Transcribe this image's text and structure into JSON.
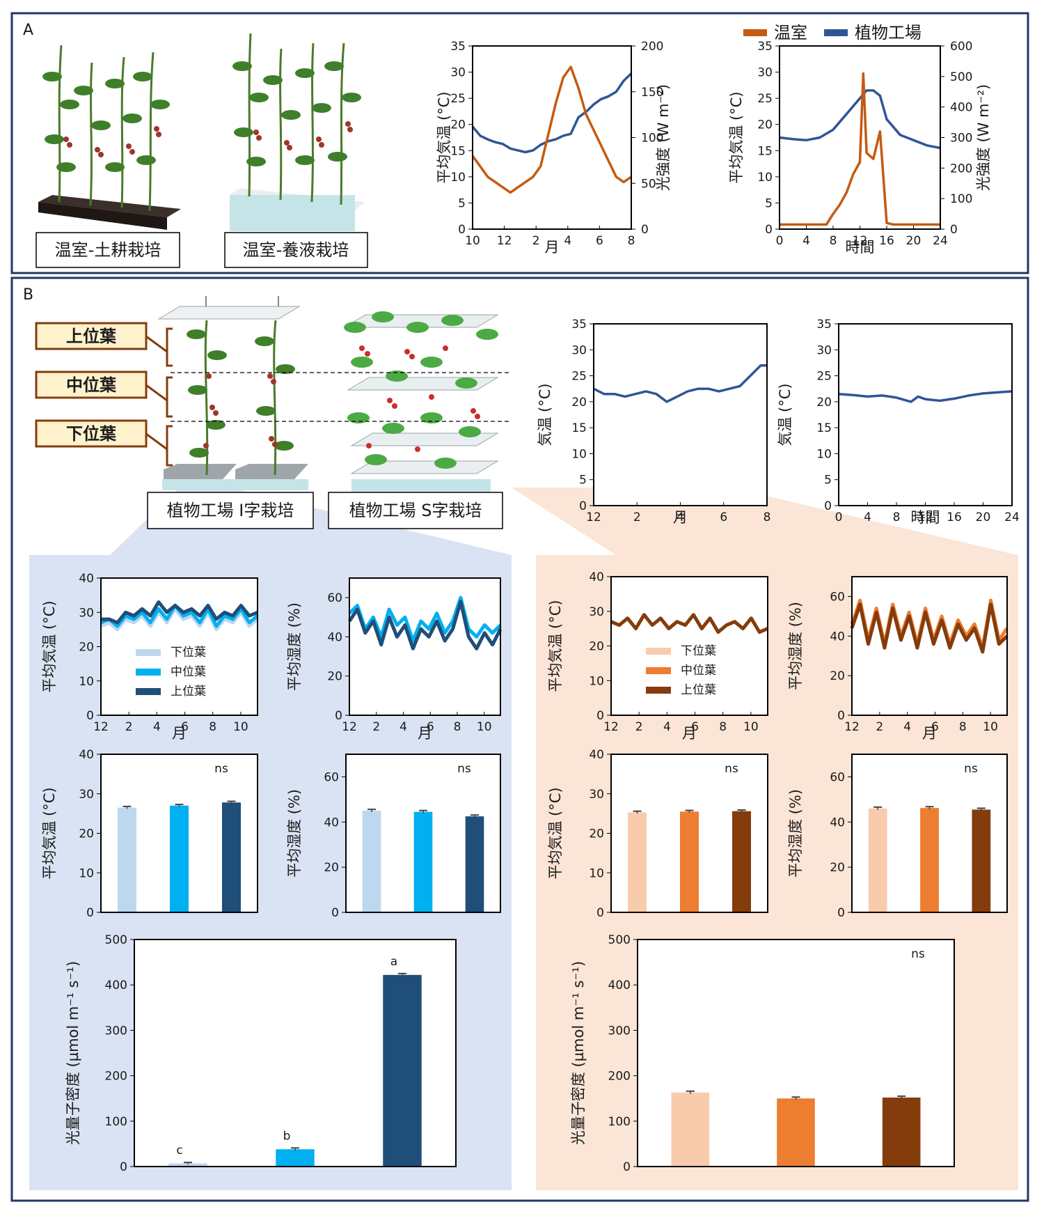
{
  "panel_a": {
    "letter": "A",
    "illus_labels": [
      "温室-土耕栽培",
      "温室-養液栽培"
    ],
    "legend": [
      "温室",
      "植物工場"
    ]
  },
  "panel_b": {
    "letter": "B",
    "leaf_labels": [
      "上位葉",
      "中位葉",
      "下位葉"
    ],
    "illus_labels": [
      "植物工場 I字栽培",
      "植物工場 S字栽培"
    ]
  },
  "colors": {
    "greenhouse": "#C55A11",
    "factory": "#2F5597",
    "i_low": "#BDD7EE",
    "i_mid": "#00B0F0",
    "i_up": "#1F4E79",
    "s_low": "#F8CBAD",
    "s_mid": "#ED7D31",
    "s_up": "#843C0C",
    "panel_i_bg": "#DAE3F3",
    "panel_s_bg": "#FBE5D6",
    "frame": "#203864",
    "label_box": "#FFF2CC",
    "label_border": "#843C0C"
  },
  "chart_data": [
    {
      "id": "a1",
      "type": "line",
      "xlabel": "月",
      "ylabel": "平均気温 (°C)",
      "y2label": "光強度 (W m⁻²)",
      "xticks": [
        "10",
        "12",
        "2",
        "4",
        "6",
        "8"
      ],
      "xlim": [
        0,
        10.5
      ],
      "ylim": [
        0,
        35
      ],
      "yticks": [
        0,
        5,
        10,
        15,
        20,
        25,
        30,
        35
      ],
      "y2lim": [
        0,
        200
      ],
      "y2ticks": [
        0,
        50,
        100,
        150,
        200
      ],
      "series": [
        {
          "axis": "y2",
          "color": "factory",
          "x": [
            0,
            0.5,
            1,
            1.5,
            2,
            2.5,
            3,
            3.5,
            4,
            4.5,
            5,
            5.5,
            6,
            6.5,
            7,
            7.5,
            8,
            8.5,
            9,
            9.5,
            10,
            10.5
          ],
          "values": [
            112,
            102,
            98,
            95,
            93,
            88,
            86,
            84,
            86,
            92,
            96,
            98,
            102,
            104,
            122,
            128,
            136,
            142,
            145,
            150,
            162,
            170
          ]
        },
        {
          "axis": "y",
          "color": "greenhouse",
          "x": [
            0,
            0.5,
            1,
            1.5,
            2,
            2.5,
            3,
            3.5,
            4,
            4.5,
            5,
            5.5,
            6,
            6.5,
            7,
            7.5,
            8,
            8.5,
            9,
            9.5,
            10,
            10.5
          ],
          "values": [
            14,
            12,
            10,
            9,
            8,
            7,
            8,
            9,
            10,
            12,
            18,
            24,
            29,
            31,
            27,
            22,
            19,
            16,
            13,
            10,
            9,
            10
          ]
        }
      ]
    },
    {
      "id": "a2",
      "type": "line",
      "xlabel": "時間",
      "ylabel": "平均気温 (°C)",
      "y2label": "光強度 (W m⁻²)",
      "xticks": [
        "0",
        "4",
        "8",
        "12",
        "16",
        "20",
        "24"
      ],
      "xlim": [
        0,
        24
      ],
      "ylim": [
        0,
        35
      ],
      "yticks": [
        0,
        5,
        10,
        15,
        20,
        25,
        30,
        35
      ],
      "y2lim": [
        0,
        600
      ],
      "y2ticks": [
        0,
        100,
        200,
        300,
        400,
        500,
        600
      ],
      "series": [
        {
          "axis": "y",
          "color": "factory",
          "x": [
            0,
            2,
            4,
            6,
            8,
            10,
            12,
            13,
            14,
            15,
            16,
            18,
            20,
            22,
            24
          ],
          "values": [
            17.5,
            17.2,
            17,
            17.5,
            19,
            22,
            25,
            26.5,
            26.5,
            25.5,
            21,
            18,
            17,
            16,
            15.5
          ]
        },
        {
          "axis": "y2",
          "color": "greenhouse",
          "x": [
            0,
            2,
            4,
            6,
            7,
            8,
            9,
            10,
            11,
            12,
            12.5,
            13,
            14,
            15,
            16,
            17,
            18,
            20,
            22,
            24
          ],
          "values": [
            15,
            15,
            15,
            15,
            15,
            50,
            80,
            120,
            180,
            220,
            510,
            250,
            230,
            320,
            20,
            15,
            15,
            15,
            15,
            15
          ]
        }
      ]
    },
    {
      "id": "b1",
      "type": "line",
      "xlabel": "月",
      "ylabel": "気温 (°C)",
      "xticks": [
        "12",
        "2",
        "4",
        "6",
        "8"
      ],
      "xlim": [
        0,
        8.3
      ],
      "ylim": [
        0,
        35
      ],
      "yticks": [
        0,
        5,
        10,
        15,
        20,
        25,
        30,
        35
      ],
      "series": [
        {
          "color": "factory",
          "x": [
            0,
            0.5,
            1,
            1.5,
            2,
            2.5,
            3,
            3.5,
            4,
            4.5,
            5,
            5.5,
            6,
            6.5,
            7,
            7.5,
            8,
            8.3
          ],
          "values": [
            22.5,
            21.5,
            21.5,
            21,
            21.5,
            22,
            21.5,
            20,
            21,
            22,
            22.5,
            22.5,
            22,
            22.5,
            23,
            25,
            27,
            27
          ]
        }
      ]
    },
    {
      "id": "b2",
      "type": "line",
      "xlabel": "時間",
      "ylabel": "気温 (°C)",
      "xticks": [
        "0",
        "4",
        "8",
        "12",
        "16",
        "20",
        "24"
      ],
      "xlim": [
        0,
        24
      ],
      "ylim": [
        0,
        35
      ],
      "yticks": [
        0,
        5,
        10,
        15,
        20,
        25,
        30,
        35
      ],
      "series": [
        {
          "color": "factory",
          "x": [
            0,
            2,
            4,
            6,
            8,
            10,
            11,
            12,
            14,
            16,
            18,
            20,
            22,
            24
          ],
          "values": [
            21.5,
            21.3,
            21,
            21.2,
            20.8,
            20,
            21,
            20.5,
            20.2,
            20.6,
            21.2,
            21.6,
            21.8,
            22
          ]
        }
      ]
    },
    {
      "id": "ci1",
      "type": "line",
      "xlabel": "月",
      "ylabel": "平均気温 (°C)",
      "xticks": [
        "12",
        "2",
        "4",
        "6",
        "8",
        "10"
      ],
      "xlim": [
        0,
        11.2
      ],
      "ylim": [
        0,
        40
      ],
      "yticks": [
        0,
        10,
        20,
        30,
        40
      ],
      "legend": [
        "下位葉",
        "中位葉",
        "上位葉"
      ],
      "series": [
        {
          "name": "下位葉",
          "color": "i_low",
          "values": [
            26,
            27,
            25,
            28,
            27,
            29,
            26,
            30,
            27,
            31,
            28,
            29,
            26,
            30,
            25,
            28,
            27,
            30,
            26,
            28
          ]
        },
        {
          "name": "中位葉",
          "color": "i_mid",
          "values": [
            27,
            28,
            26,
            29,
            28,
            30,
            27,
            31,
            28,
            32,
            29,
            30,
            27,
            31,
            26,
            29,
            28,
            31,
            27,
            29
          ]
        },
        {
          "name": "上位葉",
          "color": "i_up",
          "values": [
            28,
            28,
            27,
            30,
            29,
            31,
            29,
            33,
            30,
            32,
            30,
            31,
            29,
            32,
            28,
            30,
            29,
            32,
            29,
            30
          ]
        }
      ]
    },
    {
      "id": "ci2",
      "type": "line",
      "xlabel": "月",
      "ylabel": "平均湿度 (%)",
      "xticks": [
        "12",
        "2",
        "4",
        "6",
        "8",
        "10"
      ],
      "xlim": [
        0,
        11.2
      ],
      "ylim": [
        0,
        70
      ],
      "yticks": [
        0,
        20,
        40,
        60
      ],
      "series": [
        {
          "color": "i_mid",
          "values": [
            52,
            56,
            44,
            50,
            40,
            54,
            46,
            50,
            38,
            48,
            44,
            52,
            42,
            48,
            60,
            44,
            40,
            46,
            42,
            46
          ]
        },
        {
          "color": "i_up",
          "values": [
            48,
            54,
            42,
            48,
            36,
            50,
            40,
            46,
            34,
            44,
            40,
            48,
            38,
            44,
            58,
            40,
            34,
            42,
            36,
            44
          ]
        }
      ]
    },
    {
      "id": "cs1",
      "type": "line",
      "xlabel": "月",
      "ylabel": "平均気温 (°C)",
      "xticks": [
        "12",
        "2",
        "4",
        "6",
        "8",
        "10"
      ],
      "xlim": [
        0,
        11.2
      ],
      "ylim": [
        0,
        40
      ],
      "yticks": [
        0,
        10,
        20,
        30,
        40
      ],
      "legend": [
        "下位葉",
        "中位葉",
        "上位葉"
      ],
      "series": [
        {
          "name": "上位葉",
          "color": "s_up",
          "values": [
            27,
            26,
            28,
            25,
            29,
            26,
            28,
            25,
            27,
            26,
            29,
            25,
            28,
            24,
            26,
            27,
            25,
            28,
            24,
            25
          ]
        }
      ]
    },
    {
      "id": "cs2",
      "type": "line",
      "xlabel": "月",
      "ylabel": "平均湿度 (%)",
      "xticks": [
        "12",
        "2",
        "4",
        "6",
        "8",
        "10"
      ],
      "xlim": [
        0,
        11.2
      ],
      "ylim": [
        0,
        70
      ],
      "yticks": [
        0,
        20,
        40,
        60
      ],
      "series": [
        {
          "color": "s_mid",
          "values": [
            46,
            58,
            38,
            54,
            36,
            56,
            40,
            52,
            36,
            54,
            38,
            50,
            36,
            48,
            40,
            46,
            34,
            58,
            38,
            44
          ]
        },
        {
          "color": "s_up",
          "values": [
            44,
            56,
            36,
            52,
            34,
            54,
            38,
            50,
            34,
            52,
            36,
            48,
            34,
            46,
            38,
            44,
            32,
            56,
            36,
            40
          ]
        }
      ]
    },
    {
      "id": "bi1",
      "type": "bar",
      "ylabel": "平均気温 (°C)",
      "ylim": [
        0,
        40
      ],
      "yticks": [
        0,
        10,
        20,
        30,
        40
      ],
      "annotation": "ns",
      "values": [
        26.5,
        27,
        27.8
      ],
      "errors": [
        0.3,
        0.3,
        0.3
      ],
      "colors": [
        "i_low",
        "i_mid",
        "i_up"
      ]
    },
    {
      "id": "bi2",
      "type": "bar",
      "ylabel": "平均湿度 (%)",
      "ylim": [
        0,
        70
      ],
      "yticks": [
        0,
        20,
        40,
        60
      ],
      "annotation": "ns",
      "values": [
        45,
        44.5,
        42.5
      ],
      "errors": [
        0.6,
        0.6,
        0.6
      ],
      "colors": [
        "i_low",
        "i_mid",
        "i_up"
      ]
    },
    {
      "id": "bs1",
      "type": "bar",
      "ylabel": "平均気温 (°C)",
      "ylim": [
        0,
        40
      ],
      "yticks": [
        0,
        10,
        20,
        30,
        40
      ],
      "annotation": "ns",
      "values": [
        25.3,
        25.5,
        25.6
      ],
      "errors": [
        0.3,
        0.3,
        0.3
      ],
      "colors": [
        "s_low",
        "s_mid",
        "s_up"
      ]
    },
    {
      "id": "bs2",
      "type": "bar",
      "ylabel": "平均湿度 (%)",
      "ylim": [
        0,
        70
      ],
      "yticks": [
        0,
        20,
        40,
        60
      ],
      "annotation": "ns",
      "values": [
        46,
        46.2,
        45.5
      ],
      "errors": [
        0.6,
        0.6,
        0.6
      ],
      "colors": [
        "s_low",
        "s_mid",
        "s_up"
      ]
    },
    {
      "id": "pi",
      "type": "bar",
      "ylabel": "光量子密度 (µmol m⁻¹ s⁻¹)",
      "ylim": [
        0,
        500
      ],
      "yticks": [
        0,
        100,
        200,
        300,
        400,
        500
      ],
      "values": [
        7,
        38,
        422
      ],
      "errors": [
        2,
        3,
        3
      ],
      "letters": [
        "c",
        "b",
        "a"
      ],
      "colors": [
        "i_low",
        "i_mid",
        "i_up"
      ]
    },
    {
      "id": "ps",
      "type": "bar",
      "ylabel": "光量子密度 (µmol m⁻¹ s⁻¹)",
      "ylim": [
        0,
        500
      ],
      "yticks": [
        0,
        100,
        200,
        300,
        400,
        500
      ],
      "annotation": "ns",
      "values": [
        163,
        150,
        152
      ],
      "errors": [
        3,
        3,
        3
      ],
      "colors": [
        "s_low",
        "s_mid",
        "s_up"
      ]
    }
  ]
}
